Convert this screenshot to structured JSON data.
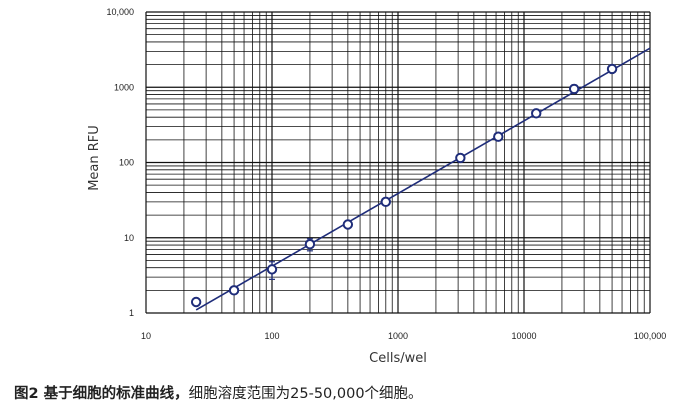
{
  "chart_data": {
    "type": "scatter",
    "xlabel": "Cells/wel",
    "ylabel": "Mean RFU",
    "x_scale": "log",
    "y_scale": "log",
    "xlim": [
      10,
      100000
    ],
    "ylim": [
      1,
      10000
    ],
    "x_ticks": [
      "10",
      "100",
      "1000",
      "10000",
      "100,000"
    ],
    "y_ticks": [
      "1",
      "10",
      "100",
      "1000",
      "10,000"
    ],
    "grid": true,
    "colors": {
      "series": "#1f2d7a",
      "grid": "#111111"
    },
    "series": [
      {
        "points": [
          {
            "x": 25,
            "y": 1.4,
            "err": 0.15
          },
          {
            "x": 50,
            "y": 2.0,
            "err": 0.12
          },
          {
            "x": 100,
            "y": 3.8,
            "err": 1.0
          },
          {
            "x": 200,
            "y": 8.2,
            "err": 1.5
          },
          {
            "x": 400,
            "y": 15,
            "err": 1.2
          },
          {
            "x": 800,
            "y": 30,
            "err": 2
          },
          {
            "x": 3125,
            "y": 115,
            "err": 6
          },
          {
            "x": 6250,
            "y": 220,
            "err": 12
          },
          {
            "x": 12500,
            "y": 450,
            "err": 25
          },
          {
            "x": 25000,
            "y": 950,
            "err": 120
          },
          {
            "x": 50000,
            "y": 1750,
            "err": 150
          }
        ],
        "fit": {
          "x": [
            25,
            100000
          ],
          "y": [
            1.1,
            3300
          ]
        }
      }
    ]
  },
  "caption": {
    "bold": "图2 基于细胞的标准曲线，",
    "text": "细胞溶度范围为25-50,000个细胞。"
  }
}
